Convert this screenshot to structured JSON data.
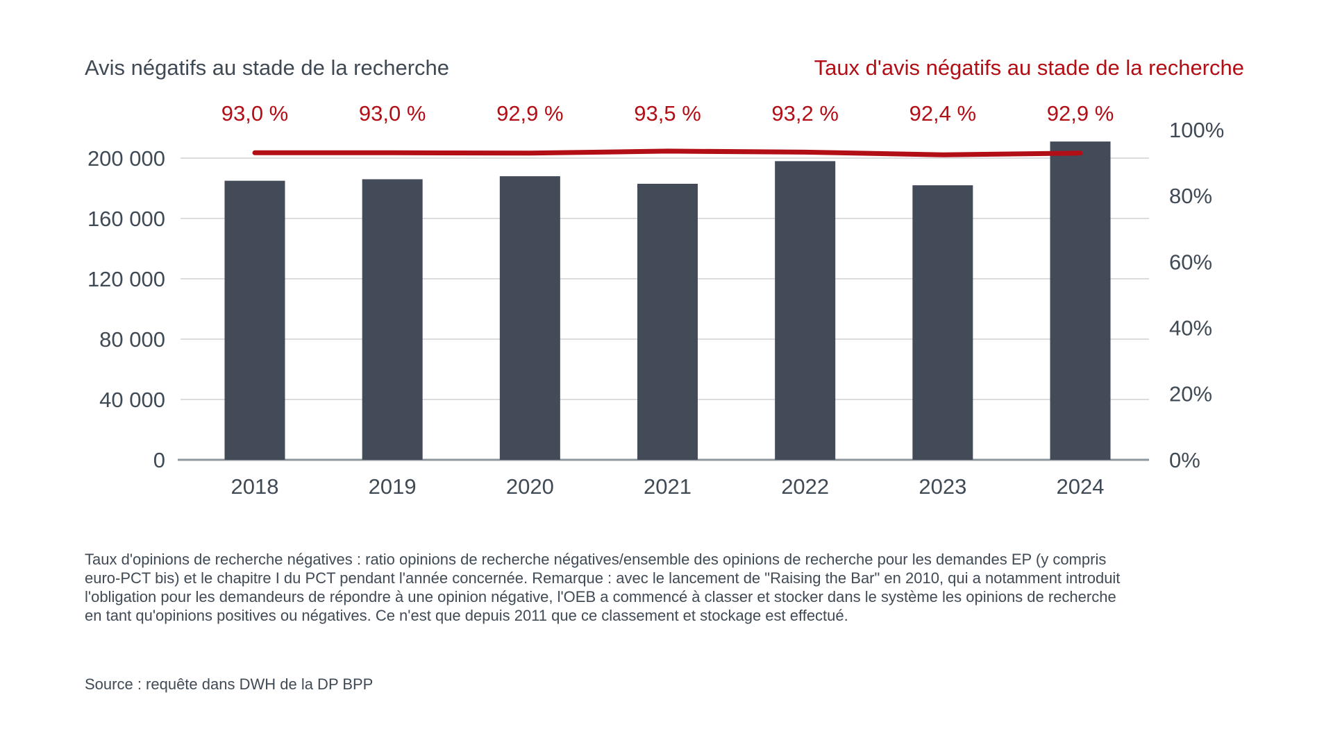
{
  "header": {
    "left_title": "Avis négatifs au stade de la recherche",
    "right_title": "Taux d'avis négatifs au stade de la recherche"
  },
  "chart_data": {
    "type": "bar",
    "categories": [
      "2018",
      "2019",
      "2020",
      "2021",
      "2022",
      "2023",
      "2024"
    ],
    "series": [
      {
        "name": "Avis négatifs au stade de la recherche",
        "type": "bar",
        "axis": "left",
        "values": [
          185000,
          186000,
          188000,
          183000,
          198000,
          182000,
          211000
        ]
      },
      {
        "name": "Taux d'avis négatifs au stade de la recherche",
        "type": "line",
        "axis": "right",
        "values": [
          93.0,
          93.0,
          92.9,
          93.5,
          93.2,
          92.4,
          92.9
        ],
        "point_labels": [
          "93,0 %",
          "93,0 %",
          "92,9 %",
          "93,5 %",
          "93,2 %",
          "92,4 %",
          "92,9 %"
        ]
      }
    ],
    "left_axis": {
      "min": 0,
      "max": 200000,
      "tick_values": [
        0,
        40000,
        80000,
        120000,
        160000,
        200000
      ],
      "tick_labels": [
        "0",
        "40 000",
        "80 000",
        "120 000",
        "160 000",
        "200 000"
      ]
    },
    "right_axis": {
      "min": 0,
      "max": 100,
      "tick_values": [
        0,
        20,
        40,
        60,
        80,
        100
      ],
      "tick_labels": [
        "0%",
        "20%",
        "40%",
        "60%",
        "80%",
        "100%"
      ]
    },
    "grid": true,
    "legend_position": "titles-above-chart",
    "colors": {
      "bar": "#434b59",
      "line": "#b20e15",
      "text": "#404a55",
      "grid": "#dcdcdc",
      "axis_line": "#8f979e"
    }
  },
  "footnote": {
    "lines": [
      "Taux d'opinions de recherche négatives : ratio opinions de recherche négatives/ensemble des opinions de recherche pour les demandes EP (y compris",
      "euro-PCT bis) et le chapitre I du PCT pendant l'année concernée. Remarque : avec le lancement de \"Raising the Bar\" en 2010, qui a notamment introduit",
      "l'obligation pour les demandeurs de répondre à une opinion négative, l'OEB a commencé à classer et stocker dans le système les opinions de recherche",
      "en tant qu'opinions positives ou négatives. Ce n'est que depuis 2011 que ce classement et stockage est effectué."
    ]
  },
  "source": "Source : requête dans DWH de la DP BPP"
}
